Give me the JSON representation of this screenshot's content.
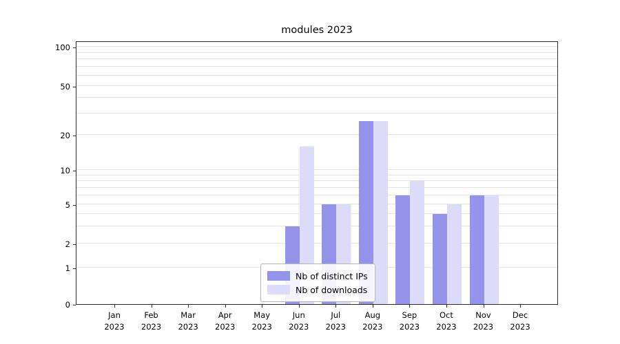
{
  "chart_data": {
    "type": "bar",
    "title": "modules 2023",
    "categories": [
      "Jan 2023",
      "Feb 2023",
      "Mar 2023",
      "Apr 2023",
      "May 2023",
      "Jun 2023",
      "Jul 2023",
      "Aug 2023",
      "Sep 2023",
      "Oct 2023",
      "Nov 2023",
      "Dec 2023"
    ],
    "series": [
      {
        "name": "Nb of distinct IPs",
        "color": "#9593e9",
        "values": [
          0,
          0,
          0,
          0,
          0,
          3,
          5,
          26,
          6,
          4,
          6,
          0
        ]
      },
      {
        "name": "Nb of downloads",
        "color": "#dcdbf8",
        "values": [
          0,
          0,
          0,
          0,
          0,
          16,
          5,
          26,
          8,
          5,
          6,
          0
        ]
      }
    ],
    "yticks": [
      0,
      1,
      2,
      5,
      10,
      20,
      50,
      100
    ],
    "grid_values": [
      1,
      2,
      3,
      4,
      5,
      6,
      7,
      8,
      9,
      10,
      20,
      30,
      40,
      50,
      60,
      70,
      80,
      90,
      100
    ],
    "ylim": [
      0,
      100
    ],
    "scale": "symlog",
    "grid": true,
    "legend": {
      "position": "lower center",
      "items": [
        "Nb of distinct IPs",
        "Nb of downloads"
      ]
    }
  }
}
